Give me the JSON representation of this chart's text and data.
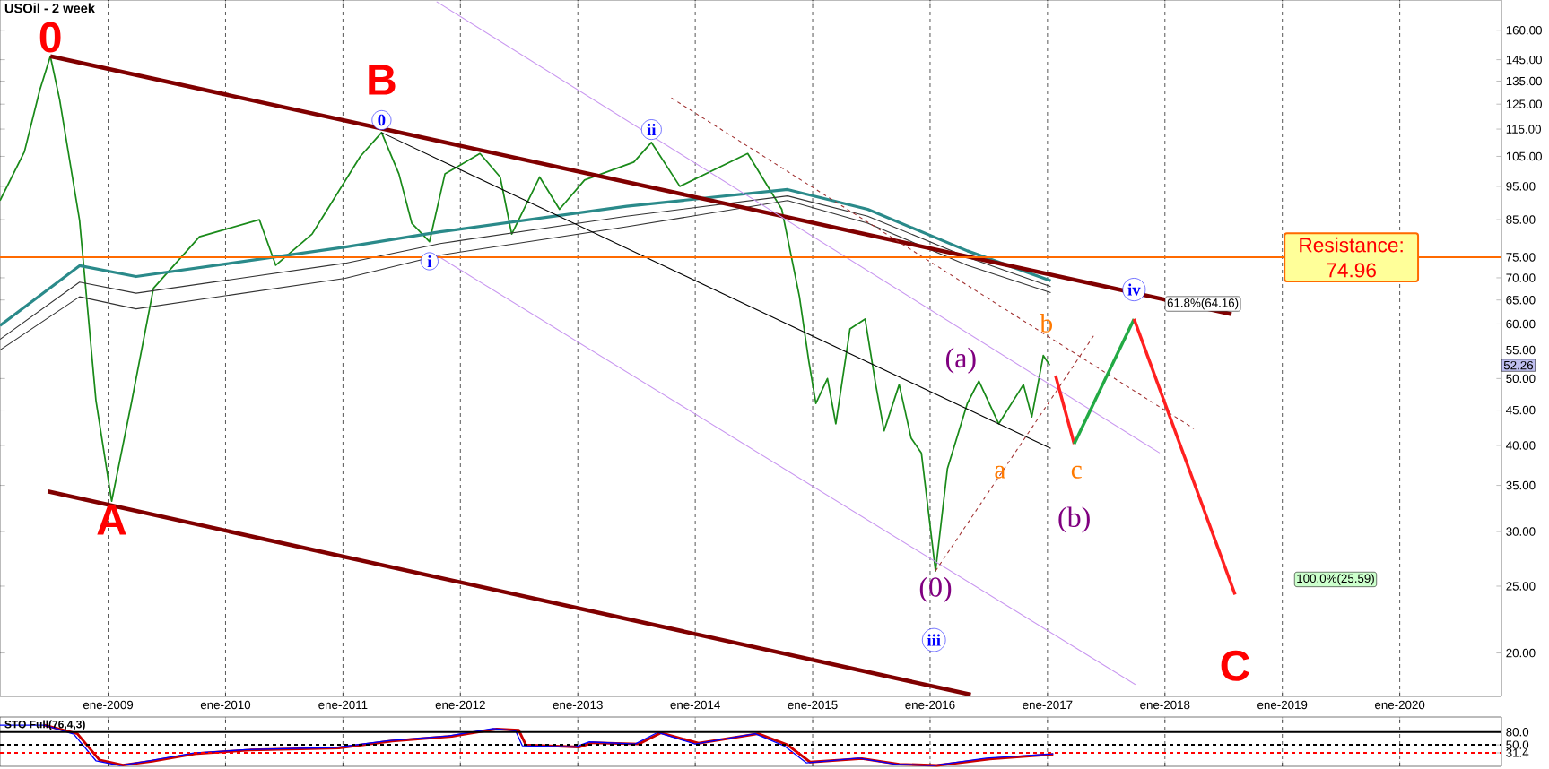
{
  "chart_data": [
    {
      "type": "line",
      "title": "USOil - 2 week",
      "xlim": [
        "2008-01-30",
        "2020-11-13"
      ],
      "ylim": [
        17.3,
        177
      ],
      "log": "y",
      "grid": "x",
      "marker": "none",
      "line_style": "solid",
      "xticks": [
        {
          "value": "2009-01",
          "label": "ene-2009"
        },
        {
          "value": "2010-01",
          "label": "ene-2010"
        },
        {
          "value": "2011-01",
          "label": "ene-2011"
        },
        {
          "value": "2012-01",
          "label": "ene-2012"
        },
        {
          "value": "2013-01",
          "label": "ene-2013"
        },
        {
          "value": "2014-01",
          "label": "ene-2014"
        },
        {
          "value": "2015-01",
          "label": "ene-2015"
        },
        {
          "value": "2016-01",
          "label": "ene-2016"
        },
        {
          "value": "2017-01",
          "label": "ene-2017"
        },
        {
          "value": "2018-01",
          "label": "ene-2018"
        },
        {
          "value": "2019-01",
          "label": "ene-2019"
        },
        {
          "value": "2020-01",
          "label": "ene-2020"
        }
      ],
      "yticks": [
        {
          "value": 20,
          "label": "20.00"
        },
        {
          "value": 25,
          "label": "25.00"
        },
        {
          "value": 30,
          "label": "30.00"
        },
        {
          "value": 35,
          "label": "35.00"
        },
        {
          "value": 40,
          "label": "40.00"
        },
        {
          "value": 45,
          "label": "45.00"
        },
        {
          "value": 50,
          "label": "50.00"
        },
        {
          "value": 55,
          "label": "55.00"
        },
        {
          "value": 60,
          "label": "60.00"
        },
        {
          "value": 65,
          "label": "65.00"
        },
        {
          "value": 70,
          "label": "70.00"
        },
        {
          "value": 75,
          "label": "75.00"
        },
        {
          "value": 85,
          "label": "85.00"
        },
        {
          "value": 95,
          "label": "95.00"
        },
        {
          "value": 105,
          "label": "105.00"
        },
        {
          "value": 115,
          "label": "115.00"
        },
        {
          "value": 125,
          "label": "125.00"
        },
        {
          "value": 135,
          "label": "135.00"
        },
        {
          "value": 145,
          "label": "145.00"
        },
        {
          "value": 160,
          "label": "160.00"
        }
      ],
      "series": [
        {
          "color": "#1a8a1a",
          "x": [
            "2008-01-30",
            "2008-04-15",
            "2008-06-02",
            "2008-07-05",
            "2008-08-03",
            "2008-10-04",
            "2008-11-24",
            "2009-01-12",
            "2009-03-14",
            "2009-05-22",
            "2009-10-12",
            "2010-04-16",
            "2010-06-06",
            "2010-09-27",
            "2011-02-24",
            "2011-05-01",
            "2011-06-24",
            "2011-08-03",
            "2011-09-27",
            "2011-11-14",
            "2012-03-02",
            "2012-05-04",
            "2012-06-09",
            "2012-09-04",
            "2012-11-05",
            "2013-01-22",
            "2013-06-24",
            "2013-08-18",
            "2013-11-14",
            "2014-06-13",
            "2014-09-27",
            "2014-11-21",
            "2014-12-20",
            "2015-01-11",
            "2015-02-16",
            "2015-03-14",
            "2015-04-27",
            "2015-06-13",
            "2015-07-16",
            "2015-08-11",
            "2015-09-27",
            "2015-11-03",
            "2015-12-05",
            "2016-01-18",
            "2016-02-24",
            "2016-04-26",
            "2016-06-01",
            "2016-08-02",
            "2016-10-18",
            "2016-11-13",
            "2016-12-19",
            "2017-01-08"
          ],
          "values": [
            90.6,
            106.6,
            131,
            146.7,
            126.8,
            84.8,
            46.5,
            33.2,
            46,
            67.6,
            80.3,
            85,
            73,
            81,
            105,
            113.7,
            99,
            84,
            79,
            99,
            106,
            98,
            81,
            98,
            88,
            97,
            103,
            110,
            95,
            106,
            88,
            65.7,
            53,
            46,
            50,
            43,
            59,
            61,
            49,
            42,
            49,
            41,
            39,
            26.3,
            37,
            46,
            49.6,
            43,
            49,
            44,
            54,
            52.26
          ]
        },
        {
          "color": "#2a8a8a",
          "x": [
            "2008-01-30",
            "2008-10-04",
            "2009-03-29",
            "2011-01-08",
            "2011-10-30",
            "2013-06-02",
            "2014-10-15",
            "2015-06-21",
            "2016-04-26",
            "2017-01-11"
          ],
          "values": [
            59.7,
            72.9,
            70.3,
            77.6,
            81.6,
            88.9,
            94,
            88,
            76.6,
            69.3
          ]
        },
        {
          "color": "#333333",
          "x": [
            "2008-01-30",
            "2008-10-04",
            "2009-03-29",
            "2011-01-08",
            "2011-10-30",
            "2013-06-02",
            "2014-10-15",
            "2015-06-21",
            "2016-04-26",
            "2017-01-11"
          ],
          "values": [
            57,
            69,
            66.5,
            73.5,
            78.5,
            86,
            92,
            86,
            75,
            68
          ]
        },
        {
          "color": "#333333",
          "x": [
            "2008-01-30",
            "2008-10-04",
            "2009-03-29",
            "2011-01-08",
            "2011-10-30",
            "2013-06-02",
            "2014-10-15",
            "2015-06-21",
            "2016-04-26",
            "2017-01-11"
          ],
          "values": [
            55,
            65.7,
            63.1,
            69.9,
            75.5,
            83,
            90.6,
            84,
            73,
            66.6
          ]
        },
        {
          "color": "#800000",
          "x": [
            "2008-07-05",
            "2018-07-27"
          ],
          "values": [
            146.7,
            62
          ]
        },
        {
          "color": "#800000",
          "x": [
            "2008-06-27",
            "2016-05-07"
          ],
          "values": [
            34.3,
            17.4
          ]
        },
        {
          "color": "#c896f0",
          "x": [
            "2011-10-19",
            "2017-12-16"
          ],
          "values": [
            176,
            39
          ]
        },
        {
          "color": "#c896f0",
          "x": [
            "2011-10-19",
            "2017-10-01"
          ],
          "values": [
            75.5,
            18
          ]
        },
        {
          "color": "#000000",
          "x": [
            "2011-05-01",
            "2017-01-11"
          ],
          "values": [
            113.7,
            39.6
          ]
        },
        {
          "color": "#a03030",
          "line_style": "dashed",
          "x": [
            "2013-10-19",
            "2018-04-01"
          ],
          "values": [
            127.6,
            42.3
          ]
        },
        {
          "color": "#a03030",
          "line_style": "dashed",
          "x": [
            "2016-01-18",
            "2017-05-30"
          ],
          "values": [
            26.3,
            58.2
          ]
        },
        {
          "color": "#ff2020",
          "x": [
            "2017-01-26",
            "2017-03-25"
          ],
          "values": [
            50.5,
            40.2
          ]
        },
        {
          "color": "#22aa44",
          "x": [
            "2017-03-25",
            "2017-09-27"
          ],
          "values": [
            40.2,
            61
          ]
        },
        {
          "color": "#ff2020",
          "x": [
            "2017-09-27",
            "2018-08-07"
          ],
          "values": [
            61,
            24.3
          ]
        }
      ],
      "ref_lines": [
        {
          "axis": "y",
          "value": 74.96,
          "label": "Resistance: 74.96",
          "color": "#ff6a00"
        }
      ],
      "annotations": [
        {
          "text": "0",
          "x": "2008-07-05",
          "y": 146.7
        },
        {
          "text": "A",
          "x": "2009-01-12",
          "y": 33.2
        },
        {
          "text": "B",
          "x": "2011-05-01",
          "y": 113.7
        },
        {
          "text": "C",
          "x": "2018-08-07",
          "y": 24.3
        },
        {
          "text": "0",
          "x": "2011-05-01",
          "y": 113.7
        },
        {
          "text": "i",
          "x": "2011-09-27",
          "y": 79
        },
        {
          "text": "ii",
          "x": "2013-08-18",
          "y": 110
        },
        "iii",
        {
          "text": "iv",
          "x": "2017-09-27",
          "y": 61
        },
        {
          "text": "(0)",
          "x": "2016-01-18",
          "y": 26.3
        },
        {
          "text": "(a)",
          "x": "2016-06-01",
          "y": 49.6
        },
        {
          "text": "(b)",
          "x": "2017-03-25",
          "y": 40.2
        },
        "a",
        "b",
        "c",
        {
          "text": "61.8%(64.16)",
          "x": "2018-01-01",
          "y": 64.16
        },
        "100.0%(25.59)",
        {
          "text": "52.26",
          "y": 52.26
        }
      ]
    },
    {
      "type": "line",
      "title": "STO Full(76,4,3)",
      "xlim": [
        "2008-01-30",
        "2020-11-13"
      ],
      "ylim": [
        0,
        115
      ],
      "grid": "x",
      "tick_labels": "y",
      "marker": "none",
      "xticks": [
        {
          "value": "2009-01",
          "label": null
        },
        {
          "value": "2010-01",
          "label": null
        },
        {
          "value": "2011-01",
          "label": null
        },
        {
          "value": "2012-01",
          "label": null
        },
        {
          "value": "2013-01",
          "label": null
        },
        {
          "value": "2014-01",
          "label": null
        },
        {
          "value": "2015-01",
          "label": null
        },
        {
          "value": "2016-01",
          "label": null
        },
        {
          "value": "2017-01",
          "label": null
        },
        {
          "value": "2018-01",
          "label": null
        },
        {
          "value": "2019-01",
          "label": null
        },
        {
          "value": "2020-01",
          "label": null
        }
      ],
      "yticks": [
        {
          "value": 31.4,
          "label": "31.4"
        },
        {
          "value": 50,
          "label": "50.0"
        },
        {
          "value": 80,
          "label": "80.0"
        }
      ],
      "ref_lines": [
        {
          "axis": "y",
          "value": 80,
          "color": "#000000"
        },
        {
          "axis": "y",
          "value": 50,
          "color": "#000000",
          "line_style": "dashed"
        },
        {
          "axis": "y",
          "value": 31.4,
          "color": "#ff0000",
          "line_style": "dashed"
        }
      ],
      "series": [
        {
          "color": "#cc0000",
          "x": [
            "2008-06-17",
            "2008-09-27",
            "2008-12-05",
            "2009-02-16",
            "2009-05-18",
            "2009-10-05",
            "2010-03-18",
            "2010-12-20",
            "2011-06-03",
            "2011-12-06",
            "2012-04-23",
            "2012-07-01",
            "2012-07-23",
            "2013-01-04",
            "2013-02-17",
            "2013-07-09",
            "2013-09-16",
            "2014-01-11",
            "2014-07-16",
            "2014-10-15",
            "2014-12-24",
            "2015-06-03",
            "2015-09-27",
            "2016-01-22",
            "2016-07-05",
            "2017-01-19"
          ],
          "values": [
            96,
            76,
            15,
            3,
            12,
            30,
            38,
            43,
            59,
            70,
            87,
            84,
            50,
            45,
            55,
            52,
            78,
            54,
            76,
            50,
            10,
            18,
            5,
            2,
            17,
            28
          ]
        },
        {
          "color": "#0000ff",
          "x": [
            "2008-01-30",
            "2008-06-17",
            "2008-09-16",
            "2008-11-24",
            "2009-02-06",
            "2009-05-08",
            "2009-09-24",
            "2010-03-07",
            "2010-12-09",
            "2011-05-23",
            "2011-11-25",
            "2012-04-12",
            "2012-06-21",
            "2012-07-12",
            "2012-12-24",
            "2013-02-06",
            "2013-06-28",
            "2013-09-06",
            "2014-01-01",
            "2014-07-06",
            "2014-10-04",
            "2014-12-13",
            "2015-05-23",
            "2015-09-16",
            "2016-01-11",
            "2016-06-24",
            "2017-01-19"
          ],
          "values": [
            96,
            96,
            75,
            13,
            2,
            13,
            31,
            39,
            44,
            60,
            71,
            88,
            83,
            48,
            45,
            57,
            52,
            79,
            52,
            76,
            48,
            8,
            19,
            5,
            2,
            19,
            29
          ]
        }
      ]
    }
  ]
}
